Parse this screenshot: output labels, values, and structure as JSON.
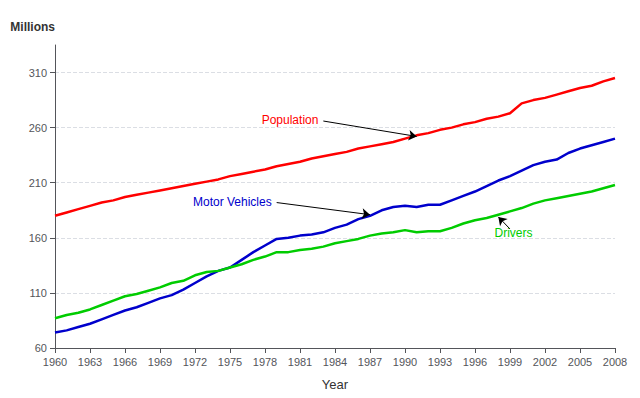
{
  "chart_data": {
    "type": "line",
    "x": [
      1960,
      1961,
      1962,
      1963,
      1964,
      1965,
      1966,
      1967,
      1968,
      1969,
      1970,
      1971,
      1972,
      1973,
      1974,
      1975,
      1976,
      1977,
      1978,
      1979,
      1980,
      1981,
      1982,
      1983,
      1984,
      1985,
      1986,
      1987,
      1988,
      1989,
      1990,
      1991,
      1992,
      1993,
      1994,
      1995,
      1996,
      1997,
      1998,
      1999,
      2000,
      2001,
      2002,
      2003,
      2004,
      2005,
      2006,
      2007,
      2008
    ],
    "series": [
      {
        "color": "#FF0000",
        "values": [
          180,
          183,
          186,
          189,
          192,
          194,
          197,
          199,
          201,
          203,
          205,
          207,
          209,
          211,
          213,
          216,
          218,
          220,
          222,
          225,
          227,
          229,
          232,
          234,
          236,
          238,
          241,
          243,
          245,
          247,
          250,
          253,
          255,
          258,
          260,
          263,
          265,
          268,
          270,
          273,
          282,
          285,
          287,
          290,
          293,
          296,
          298,
          302,
          305
        ]
      },
      {
        "color": "#0000CC",
        "values": [
          74,
          76,
          79,
          82,
          86,
          90,
          94,
          97,
          101,
          105,
          108,
          113,
          119,
          125,
          130,
          133,
          140,
          147,
          153,
          159,
          160,
          162,
          163,
          165,
          169,
          172,
          177,
          180,
          185,
          188,
          189,
          188,
          190,
          190,
          194,
          198,
          202,
          207,
          212,
          216,
          221,
          226,
          229,
          231,
          237,
          241,
          244,
          247,
          250
        ]
      },
      {
        "color": "#00CC00",
        "values": [
          87,
          90,
          92,
          95,
          99,
          103,
          107,
          109,
          112,
          115,
          119,
          121,
          126,
          129,
          130,
          133,
          136,
          140,
          143,
          147,
          147,
          149,
          150,
          152,
          155,
          157,
          159,
          162,
          164,
          165,
          167,
          165,
          166,
          166,
          169,
          173,
          176,
          178,
          181,
          184,
          187,
          191,
          194,
          196,
          198,
          200,
          202,
          205,
          208
        ]
      }
    ],
    "xlabel": "Year",
    "ylabel": "Millions",
    "xlim": [
      1960,
      2008
    ],
    "xticks": [
      1960,
      1963,
      1966,
      1969,
      1972,
      1975,
      1978,
      1981,
      1984,
      1987,
      1990,
      1993,
      1996,
      1999,
      2002,
      2005,
      2008
    ],
    "ylim": [
      60,
      335
    ],
    "yticks": [
      60,
      110,
      160,
      210,
      260,
      310
    ],
    "grid": true,
    "annotations": [
      {
        "text": "Population",
        "x": 1991,
        "y": 252,
        "text_x": 1983,
        "text_y": 266,
        "color": "#FF0000"
      },
      {
        "text": "Motor Vehicles",
        "x": 1987,
        "y": 181,
        "text_x": 1979,
        "text_y": 192,
        "color": "#0000CC"
      },
      {
        "text": "Drivers",
        "x": 1998,
        "y": 179,
        "text_x": 1999,
        "text_y": 168,
        "color": "#00CC00"
      }
    ]
  }
}
